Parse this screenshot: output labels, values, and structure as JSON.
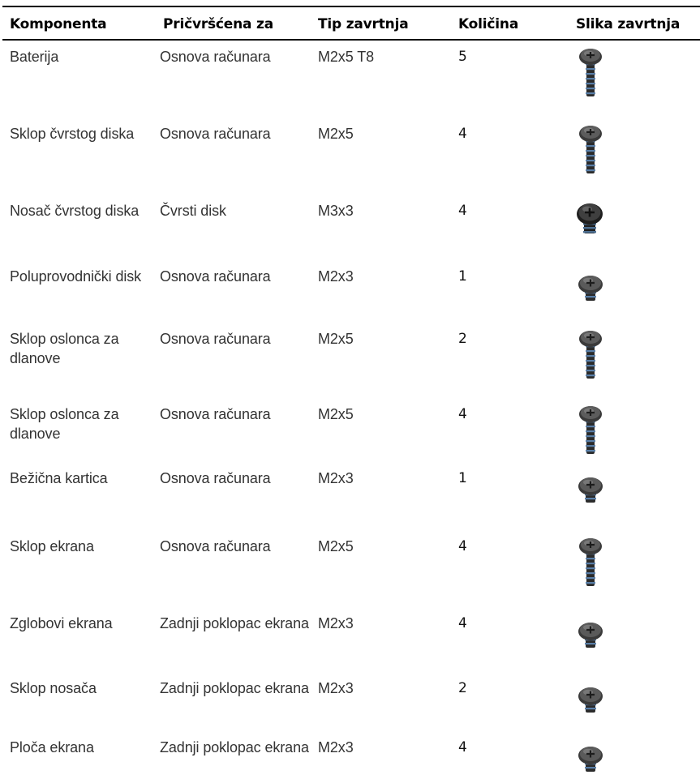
{
  "table": {
    "headers": [
      "Komponenta",
      "Pričvršćena za",
      "Tip zavrtnja",
      "Količina",
      "Slika zavrtnja"
    ],
    "rows": [
      {
        "component": "Baterija",
        "attached_to": "Osnova računara",
        "screw_type": "M2x5 T8",
        "quantity": "5",
        "screw_icon": "long-screw-icon"
      },
      {
        "component": "Sklop čvrstog diska",
        "attached_to": "Osnova računara",
        "screw_type": "M2x5",
        "quantity": "4",
        "screw_icon": "long-screw-icon"
      },
      {
        "component": "Nosač čvrstog diska",
        "attached_to": "Čvrsti disk",
        "screw_type": "M3x3",
        "quantity": "4",
        "screw_icon": "wide-short-screw-icon"
      },
      {
        "component": "Poluprovodnički disk",
        "attached_to": "Osnova računara",
        "screw_type": "M2x3",
        "quantity": "1",
        "screw_icon": "short-screw-icon"
      },
      {
        "component": "Sklop oslonca za dlanove",
        "attached_to": "Osnova računara",
        "screw_type": "M2x5",
        "quantity": "2",
        "screw_icon": "long-screw-icon"
      },
      {
        "component": "Sklop oslonca za dlanove",
        "attached_to": "Osnova računara",
        "screw_type": "M2x5",
        "quantity": "4",
        "screw_icon": "long-screw-icon"
      },
      {
        "component": "Bežična kartica",
        "attached_to": "Osnova računara",
        "screw_type": "M2x3",
        "quantity": "1",
        "screw_icon": "short-screw-icon"
      },
      {
        "component": "Sklop ekrana",
        "attached_to": "Osnova računara",
        "screw_type": "M2x5",
        "quantity": "4",
        "screw_icon": "long-screw-icon"
      },
      {
        "component": "Zglobovi ekrana",
        "attached_to": "Zadnji poklopac ekrana",
        "screw_type": "M2x3",
        "quantity": "4",
        "screw_icon": "short-screw-icon"
      },
      {
        "component": "Sklop nosača",
        "attached_to": "Zadnji poklopac ekrana",
        "screw_type": "M2x3",
        "quantity": "2",
        "screw_icon": "short-screw-icon"
      },
      {
        "component": "Ploča ekrana",
        "attached_to": "Zadnji poklopac ekrana",
        "screw_type": "M2x3",
        "quantity": "4",
        "screw_icon": "short-screw-icon"
      }
    ]
  }
}
